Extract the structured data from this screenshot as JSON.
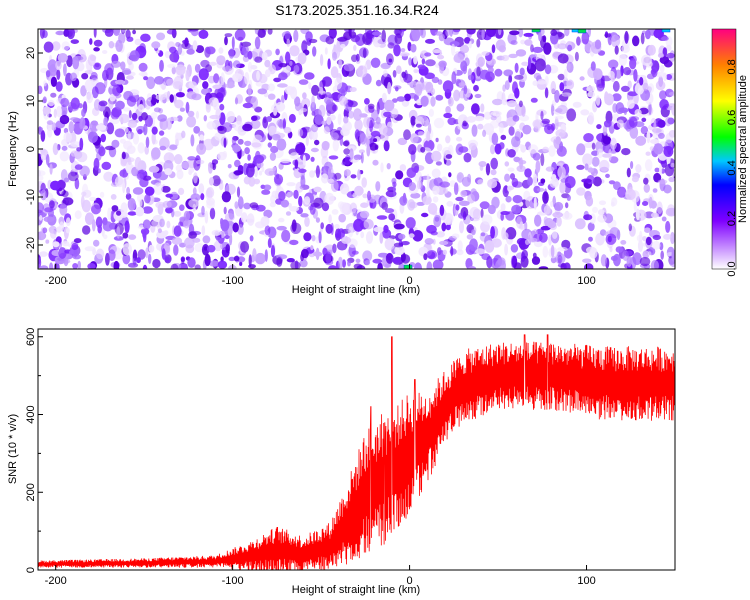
{
  "title": "S173.2025.351.16.34.R24",
  "chart_data": [
    {
      "type": "heatmap",
      "xlabel": "Height of straight line (km)",
      "ylabel": "Frequency (Hz)",
      "xlim": [
        -210,
        150
      ],
      "ylim": [
        -25,
        25
      ],
      "x_ticks": [
        "-200",
        "-100",
        "0",
        "100"
      ],
      "y_ticks": [
        "20",
        "10",
        "0",
        "-10",
        "-20"
      ],
      "colorbar": {
        "label": "Normalized spectral amplitude",
        "range": [
          0,
          0.95
        ],
        "ticks": [
          "0.0",
          "0.2",
          "0.4",
          "0.6",
          "0.8"
        ]
      },
      "grid": false
    },
    {
      "type": "line",
      "xlabel": "Height of straight line (km)",
      "ylabel": "SNR (10 * v/v)",
      "xlim": [
        -210,
        150
      ],
      "ylim": [
        0,
        620
      ],
      "x_ticks": [
        "-200",
        "-100",
        "0",
        "100"
      ],
      "y_ticks": [
        "0",
        "200",
        "400",
        "600"
      ],
      "color": "#ff0000",
      "profile": [
        {
          "x": -210,
          "base": 15,
          "amp": 12
        },
        {
          "x": -150,
          "base": 18,
          "amp": 15
        },
        {
          "x": -110,
          "base": 22,
          "amp": 20
        },
        {
          "x": -90,
          "base": 35,
          "amp": 50
        },
        {
          "x": -75,
          "base": 50,
          "amp": 80
        },
        {
          "x": -60,
          "base": 40,
          "amp": 60
        },
        {
          "x": -45,
          "base": 60,
          "amp": 80
        },
        {
          "x": -35,
          "base": 120,
          "amp": 140
        },
        {
          "x": -25,
          "base": 200,
          "amp": 200
        },
        {
          "x": -15,
          "base": 230,
          "amp": 220
        },
        {
          "x": -8,
          "base": 260,
          "amp": 200
        },
        {
          "x": 0,
          "base": 300,
          "amp": 200
        },
        {
          "x": 10,
          "base": 340,
          "amp": 150
        },
        {
          "x": 20,
          "base": 420,
          "amp": 120
        },
        {
          "x": 30,
          "base": 470,
          "amp": 120
        },
        {
          "x": 50,
          "base": 500,
          "amp": 110
        },
        {
          "x": 80,
          "base": 500,
          "amp": 110
        },
        {
          "x": 110,
          "base": 480,
          "amp": 120
        },
        {
          "x": 150,
          "base": 480,
          "amp": 120
        }
      ],
      "spikes": [
        {
          "x": -10,
          "y": 600
        },
        {
          "x": -14,
          "y": 380
        },
        {
          "x": -22,
          "y": 420
        },
        {
          "x": 3,
          "y": 490
        },
        {
          "x": 65,
          "y": 605
        },
        {
          "x": 78,
          "y": 605
        }
      ],
      "grid": false
    }
  ]
}
